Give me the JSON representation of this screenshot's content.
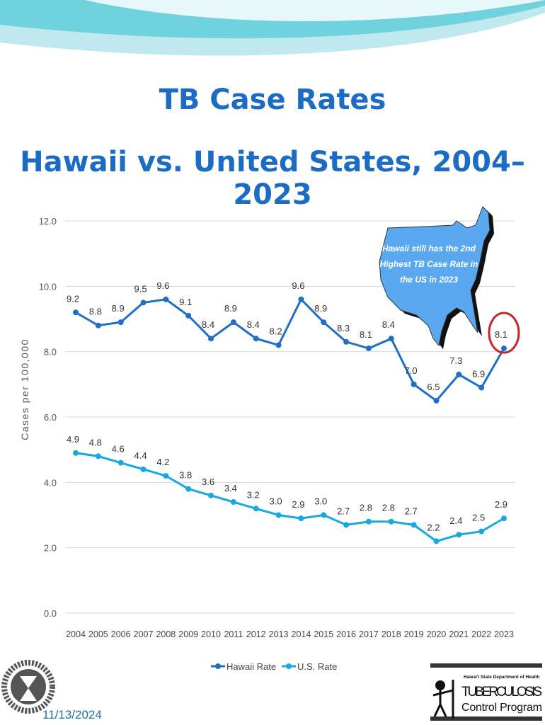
{
  "slide": {
    "title_line1": "TB Case Rates",
    "title_line2": "Hawaii vs. United States, 2004–2023",
    "date": "11/13/2024",
    "callout": [
      "Hawaii still has the 2nd",
      "Highest TB Case Rate in",
      "the US in 2023"
    ],
    "logo_left": "HAWAII STATE DEPARTMENT OF HEALTH",
    "logo_right": {
      "line1": "Hawai'i State Department of Health",
      "line2": "TUBERCULOSIS",
      "line3": "Control Program"
    }
  },
  "colors": {
    "hawaii": "#1f6fc7",
    "us": "#17a9dd",
    "title": "#1b6cc2",
    "callout_fill": "#5aa9f0",
    "highlight_circle": "#c8242b"
  },
  "chart_data": {
    "type": "line",
    "title": "TB Case Rates Hawaii vs. United States, 2004–2023",
    "ylabel": "Cases per 100,000",
    "xlabel": "",
    "ylim": [
      0,
      12
    ],
    "yticks": [
      "0.0",
      "2.0",
      "4.0",
      "6.0",
      "8.0",
      "10.0",
      "12.0"
    ],
    "grid": true,
    "legend": "bottom",
    "x": [
      "2004",
      "2005",
      "2006",
      "2007",
      "2008",
      "2009",
      "2010",
      "2011",
      "2012",
      "2013",
      "2014",
      "2015",
      "2016",
      "2017",
      "2018",
      "2019",
      "2020",
      "2021",
      "2022",
      "2023"
    ],
    "series": [
      {
        "name": "Hawaii Rate",
        "values": [
          9.2,
          8.8,
          8.9,
          9.5,
          9.6,
          9.1,
          8.4,
          8.9,
          8.4,
          8.2,
          9.6,
          8.9,
          8.3,
          8.1,
          8.4,
          7.0,
          6.5,
          7.3,
          6.9,
          8.1
        ]
      },
      {
        "name": "U.S. Rate",
        "values": [
          4.9,
          4.8,
          4.6,
          4.4,
          4.2,
          3.8,
          3.6,
          3.4,
          3.2,
          3.0,
          2.9,
          3.0,
          2.7,
          2.8,
          2.8,
          2.7,
          2.2,
          2.4,
          2.5,
          2.9
        ]
      }
    ],
    "highlight": {
      "series": "Hawaii Rate",
      "x": "2023"
    }
  }
}
